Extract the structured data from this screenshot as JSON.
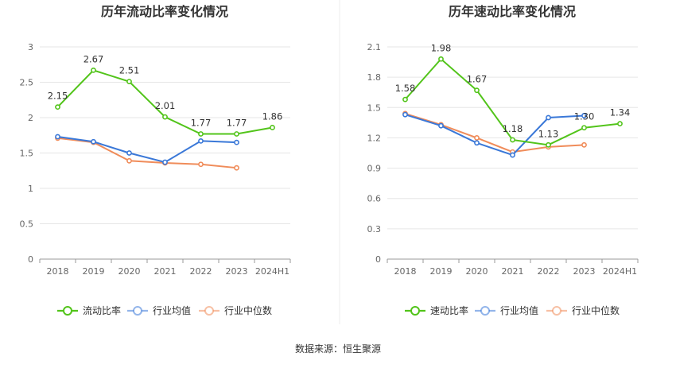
{
  "source_label": "数据来源：恒生聚源",
  "chart_data": [
    {
      "type": "line",
      "title": "历年流动比率变化情况",
      "categories": [
        "2018",
        "2019",
        "2020",
        "2021",
        "2022",
        "2023",
        "2024H1"
      ],
      "ylim": [
        0,
        3
      ],
      "yticks": [
        "0",
        "0.5",
        "1",
        "1.5",
        "2",
        "2.5",
        "3"
      ],
      "ytick_values": [
        0,
        0.5,
        1,
        1.5,
        2,
        2.5,
        3
      ],
      "grid": true,
      "legend_position": "bottom",
      "series": [
        {
          "name": "流动比率",
          "color": "#52c41a",
          "values": [
            2.15,
            2.67,
            2.51,
            2.01,
            1.77,
            1.77,
            1.86
          ],
          "labels": [
            "2.15",
            "2.67",
            "2.51",
            "2.01",
            "1.77",
            "1.77",
            "1.86"
          ]
        },
        {
          "name": "行业均值",
          "color": "#3a78d8",
          "values": [
            1.73,
            1.66,
            1.5,
            1.37,
            1.67,
            1.65,
            null
          ]
        },
        {
          "name": "行业中位数",
          "color": "#f08c5a",
          "values": [
            1.71,
            1.65,
            1.39,
            1.36,
            1.34,
            1.29,
            null
          ]
        }
      ]
    },
    {
      "type": "line",
      "title": "历年速动比率变化情况",
      "categories": [
        "2018",
        "2019",
        "2020",
        "2021",
        "2022",
        "2023",
        "2024H1"
      ],
      "ylim": [
        0,
        2.1
      ],
      "yticks": [
        "0",
        "0.3",
        "0.6",
        "0.9",
        "1.2",
        "1.5",
        "1.8",
        "2.1"
      ],
      "ytick_values": [
        0,
        0.3,
        0.6,
        0.9,
        1.2,
        1.5,
        1.8,
        2.1
      ],
      "grid": true,
      "legend_position": "bottom",
      "series": [
        {
          "name": "速动比率",
          "color": "#52c41a",
          "values": [
            1.58,
            1.98,
            1.67,
            1.18,
            1.13,
            1.3,
            1.34
          ],
          "labels": [
            "1.58",
            "1.98",
            "1.67",
            "1.18",
            "1.13",
            "1.30",
            "1.34"
          ]
        },
        {
          "name": "行业均值",
          "color": "#3a78d8",
          "values": [
            1.43,
            1.32,
            1.15,
            1.03,
            1.4,
            1.42,
            null
          ]
        },
        {
          "name": "行业中位数",
          "color": "#f08c5a",
          "values": [
            1.44,
            1.33,
            1.2,
            1.06,
            1.11,
            1.13,
            null
          ]
        }
      ]
    }
  ]
}
